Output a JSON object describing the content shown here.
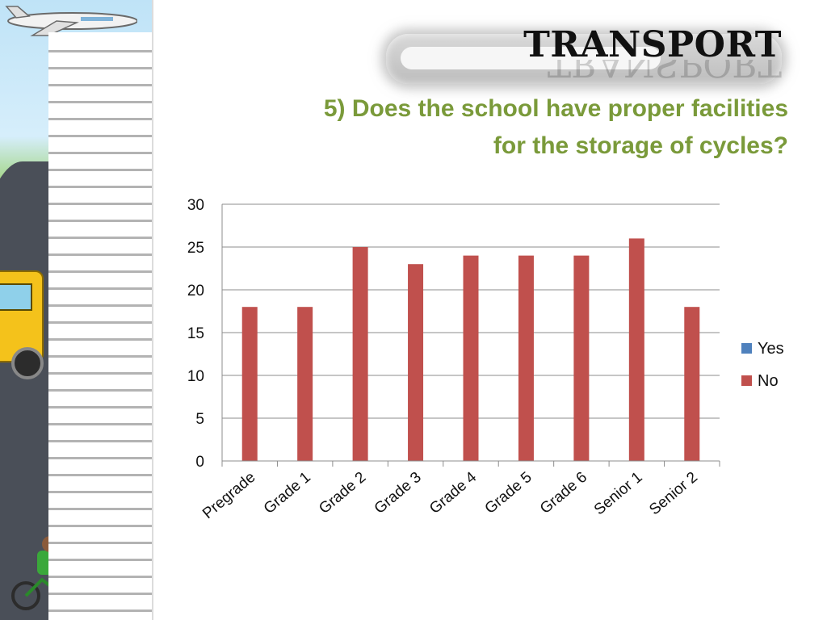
{
  "slide": {
    "title": "TRANSPORT",
    "question_line1": "5) Does the school have proper facilities",
    "question_line2": "for the storage of cycles?"
  },
  "colors": {
    "yes": "#4f81bd",
    "no": "#c0504d",
    "question_text": "#7a9a3a"
  },
  "chart_data": {
    "type": "bar",
    "title": "",
    "xlabel": "",
    "ylabel": "",
    "ylim": [
      0,
      30
    ],
    "yticks": [
      0,
      5,
      10,
      15,
      20,
      25,
      30
    ],
    "grid": true,
    "legend_position": "right",
    "categories": [
      "Pregrade",
      "Grade 1",
      "Grade 2",
      "Grade 3",
      "Grade 4",
      "Grade 5",
      "Grade 6",
      "Senior 1",
      "Senior 2"
    ],
    "series": [
      {
        "name": "Yes",
        "values": [
          0,
          0,
          0,
          0,
          0,
          0,
          0,
          0,
          0
        ]
      },
      {
        "name": "No",
        "values": [
          18,
          18,
          25,
          23,
          24,
          24,
          24,
          26,
          18
        ]
      }
    ]
  }
}
